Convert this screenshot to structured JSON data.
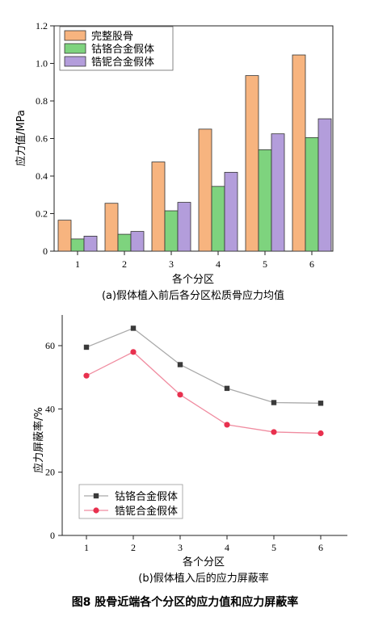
{
  "chart_data": [
    {
      "type": "bar",
      "caption": "(a)假体植入前后各分区松质骨应力均值",
      "xlabel": "各个分区",
      "ylabel": "应力值/MPa",
      "categories": [
        "1",
        "2",
        "3",
        "4",
        "5",
        "6"
      ],
      "ylim": [
        0,
        1.2
      ],
      "yticks": [
        "0",
        "0.2",
        "0.4",
        "0.6",
        "0.8",
        "1.0",
        "1.2"
      ],
      "legend_position": "top-left",
      "series": [
        {
          "name": "完整股骨",
          "color": "#f7b47f",
          "values": [
            0.165,
            0.255,
            0.475,
            0.65,
            0.935,
            1.045
          ]
        },
        {
          "name": "钴铬合金假体",
          "color": "#7ed37e",
          "values": [
            0.065,
            0.09,
            0.215,
            0.345,
            0.54,
            0.605
          ]
        },
        {
          "name": "锆铌合金假体",
          "color": "#b39ddb",
          "values": [
            0.08,
            0.105,
            0.26,
            0.42,
            0.625,
            0.705
          ]
        }
      ]
    },
    {
      "type": "line",
      "caption": "(b)假体植入后的应力屏蔽率",
      "xlabel": "各个分区",
      "ylabel": "应力屏蔽率/%",
      "x": [
        "1",
        "2",
        "3",
        "4",
        "5",
        "6"
      ],
      "ylim": [
        0,
        70
      ],
      "yticks": [
        "0",
        "20",
        "40",
        "60"
      ],
      "legend_position": "bottom-left",
      "series": [
        {
          "name": "钴铬合金假体",
          "color": "#3a3a3a",
          "line_color": "#a9a9a9",
          "marker": "square",
          "values": [
            59.5,
            65.5,
            54.0,
            46.5,
            42.0,
            41.8
          ]
        },
        {
          "name": "锆铌合金假体",
          "color": "#e8304e",
          "line_color": "#f08ca0",
          "marker": "circle",
          "values": [
            50.5,
            58.0,
            44.5,
            35.0,
            32.7,
            32.3
          ]
        }
      ]
    }
  ],
  "figure_caption": "图8  股骨近端各个分区的应力值和应力屏蔽率"
}
